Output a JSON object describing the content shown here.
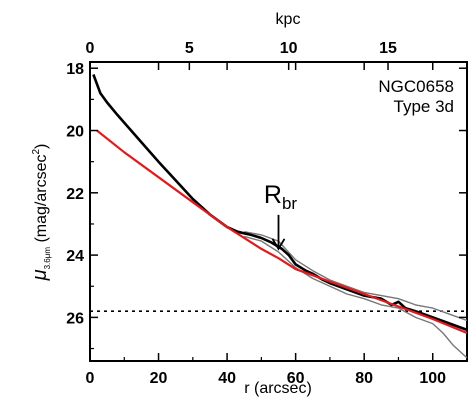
{
  "chart_data": {
    "type": "line",
    "xlabel": "r (arcsec)",
    "ylabel_parts": [
      "μ",
      "3.6μm",
      " (mag/arcsec",
      "2",
      ")"
    ],
    "top_axis_label": "kpc",
    "xlim": [
      0,
      110
    ],
    "ylim": [
      27.4,
      17.8
    ],
    "y_inverted": true,
    "x_ticks": [
      0,
      20,
      40,
      60,
      80,
      100
    ],
    "x_tick_labels": [
      "0",
      "20",
      "40",
      "60",
      "80",
      "100"
    ],
    "y_ticks": [
      18,
      20,
      22,
      24,
      26
    ],
    "y_tick_labels": [
      "18",
      "20",
      "22",
      "24",
      "26"
    ],
    "kpc_per_arcsec": 0.1725,
    "top_ticks_kpc": [
      0,
      5,
      10,
      15
    ],
    "top_tick_labels": [
      "0",
      "5",
      "10",
      "15"
    ],
    "annotations": {
      "galaxy": "NGC0658",
      "type": "Type 3d",
      "rbr_main": "R",
      "rbr_sub": "br",
      "rbr_x": 55,
      "rbr_y_arrow_tip": 23.8,
      "sky_limit": 25.8
    },
    "series": [
      {
        "role": "profile",
        "color": "#000000",
        "x": [
          1,
          3,
          5,
          8,
          12,
          16,
          20,
          25,
          30,
          35,
          40,
          43,
          45,
          47,
          50,
          53,
          56,
          58,
          60,
          63,
          65,
          68,
          70,
          75,
          80,
          85,
          88,
          90,
          92,
          95,
          100,
          105,
          110
        ],
        "y": [
          18.2,
          18.8,
          19.1,
          19.5,
          20.0,
          20.5,
          21.0,
          21.6,
          22.2,
          22.7,
          23.1,
          23.25,
          23.3,
          23.35,
          23.45,
          23.6,
          23.8,
          24.0,
          24.3,
          24.5,
          24.6,
          24.8,
          24.9,
          25.1,
          25.3,
          25.4,
          25.6,
          25.5,
          25.7,
          25.8,
          26.0,
          26.2,
          26.4
        ]
      },
      {
        "role": "upper-envelope",
        "color": "#777777",
        "x": [
          45,
          50,
          55,
          60,
          65,
          70,
          75,
          80,
          85,
          90,
          95,
          100,
          105,
          110
        ],
        "y": [
          23.25,
          23.35,
          23.55,
          24.15,
          24.5,
          24.8,
          25.0,
          25.2,
          25.3,
          25.4,
          25.6,
          25.7,
          25.9,
          26.1
        ]
      },
      {
        "role": "lower-envelope",
        "color": "#777777",
        "x": [
          45,
          50,
          55,
          60,
          65,
          70,
          75,
          80,
          85,
          90,
          95,
          100,
          103,
          106,
          110
        ],
        "y": [
          23.4,
          23.55,
          23.9,
          24.4,
          24.75,
          25.0,
          25.25,
          25.4,
          25.6,
          25.7,
          26.0,
          26.2,
          26.5,
          26.9,
          27.3
        ]
      },
      {
        "role": "model-fit",
        "color": "#e31a1c",
        "x": [
          2,
          10,
          20,
          30,
          40,
          50,
          55,
          60,
          65,
          70,
          80,
          90,
          100,
          110
        ],
        "y": [
          20.0,
          20.7,
          21.5,
          22.3,
          23.1,
          23.8,
          24.1,
          24.45,
          24.65,
          24.85,
          25.25,
          25.65,
          26.05,
          26.5
        ]
      }
    ]
  }
}
